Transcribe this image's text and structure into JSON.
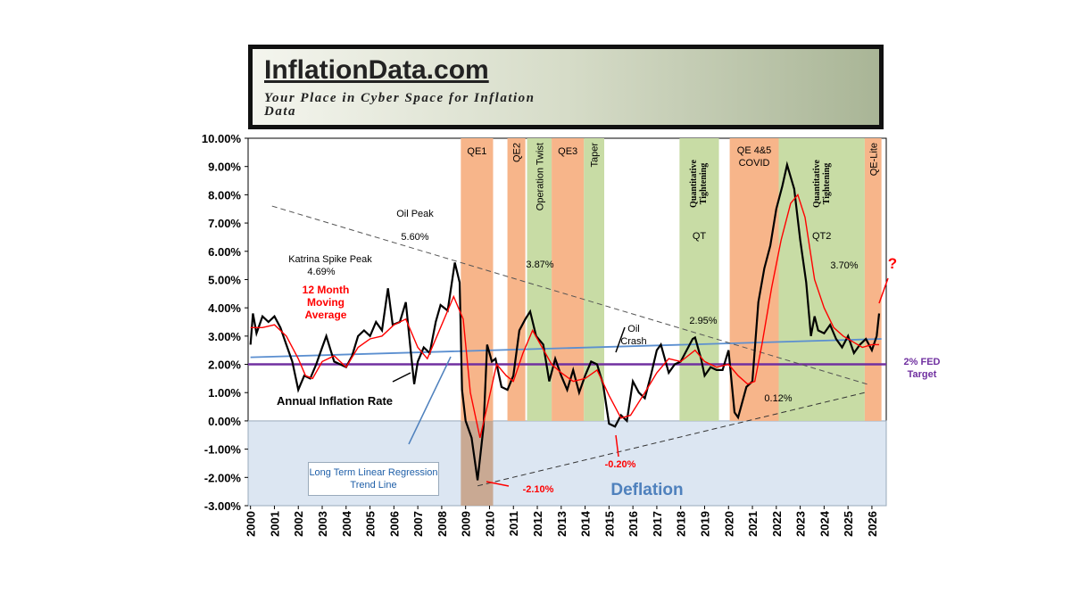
{
  "chart_data": {
    "type": "line",
    "title": "InflationData.com",
    "subtitle": "Your Place in Cyber Space for Inflation Data",
    "xlim": [
      1999.9,
      2026.6
    ],
    "ylim": [
      -3,
      10
    ],
    "xticks": [
      2000,
      2001,
      2002,
      2003,
      2004,
      2005,
      2006,
      2007,
      2008,
      2009,
      2010,
      2011,
      2012,
      2013,
      2014,
      2015,
      2016,
      2017,
      2018,
      2019,
      2020,
      2021,
      2022,
      2023,
      2024,
      2025,
      2026
    ],
    "yticks": [
      {
        "value": -3,
        "label": "-3.00%"
      },
      {
        "value": -2,
        "label": "-2.00%"
      },
      {
        "value": -1,
        "label": "-1.00%"
      },
      {
        "value": 0,
        "label": "0.00%"
      },
      {
        "value": 1,
        "label": "1.00%"
      },
      {
        "value": 2,
        "label": "2.00%"
      },
      {
        "value": 3,
        "label": "3.00%"
      },
      {
        "value": 4,
        "label": "4.00%"
      },
      {
        "value": 5,
        "label": "5.00%"
      },
      {
        "value": 6,
        "label": "6.00%"
      },
      {
        "value": 7,
        "label": "7.00%"
      },
      {
        "value": 8,
        "label": "8.00%"
      },
      {
        "value": 9,
        "label": "9.00%"
      },
      {
        "value": 10,
        "label": "10.00%"
      }
    ],
    "series": [
      {
        "name": "Annual Inflation Rate",
        "color": "#000000",
        "x": [
          2000.0,
          2000.1,
          2000.25,
          2000.5,
          2000.75,
          2001.0,
          2001.25,
          2001.5,
          2001.75,
          2002.0,
          2002.25,
          2002.5,
          2002.75,
          2003.0,
          2003.17,
          2003.5,
          2003.75,
          2004.0,
          2004.25,
          2004.5,
          2004.75,
          2005.0,
          2005.25,
          2005.5,
          2005.75,
          2005.95,
          2006.25,
          2006.5,
          2006.75,
          2006.85,
          2007.0,
          2007.25,
          2007.5,
          2007.75,
          2007.95,
          2008.25,
          2008.55,
          2008.75,
          2008.85,
          2009.0,
          2009.25,
          2009.5,
          2009.75,
          2009.9,
          2010.1,
          2010.25,
          2010.5,
          2010.75,
          2011.0,
          2011.25,
          2011.5,
          2011.7,
          2011.95,
          2012.25,
          2012.5,
          2012.75,
          2013.0,
          2013.25,
          2013.5,
          2013.75,
          2014.0,
          2014.25,
          2014.5,
          2014.75,
          2015.0,
          2015.25,
          2015.5,
          2015.75,
          2016.0,
          2016.25,
          2016.5,
          2016.75,
          2017.0,
          2017.17,
          2017.5,
          2017.75,
          2018.0,
          2018.5,
          2018.6,
          2018.85,
          2019.0,
          2019.25,
          2019.5,
          2019.75,
          2020.0,
          2020.25,
          2020.4,
          2020.75,
          2021.0,
          2021.25,
          2021.5,
          2021.75,
          2022.0,
          2022.25,
          2022.45,
          2022.75,
          2023.0,
          2023.25,
          2023.45,
          2023.6,
          2023.75,
          2024.0,
          2024.25,
          2024.5,
          2024.75,
          2025.0,
          2025.25,
          2025.5,
          2025.75,
          2026.0,
          2026.2,
          2026.3
        ],
        "values": [
          2.7,
          3.8,
          3.1,
          3.7,
          3.5,
          3.7,
          3.3,
          2.7,
          2.1,
          1.1,
          1.6,
          1.5,
          2.0,
          2.6,
          3.0,
          2.1,
          2.0,
          1.9,
          2.3,
          3.0,
          3.2,
          3.0,
          3.5,
          3.2,
          4.69,
          3.4,
          3.5,
          4.2,
          2.1,
          1.3,
          2.1,
          2.6,
          2.4,
          3.5,
          4.1,
          3.9,
          5.6,
          4.9,
          1.1,
          0.0,
          -0.6,
          -2.1,
          -0.2,
          2.7,
          2.1,
          2.2,
          1.2,
          1.1,
          1.6,
          3.2,
          3.6,
          3.87,
          3.0,
          2.7,
          1.4,
          2.2,
          1.6,
          1.1,
          1.8,
          1.0,
          1.6,
          2.1,
          2.0,
          1.3,
          -0.1,
          -0.2,
          0.2,
          0.0,
          1.4,
          1.0,
          0.8,
          1.6,
          2.5,
          2.7,
          1.7,
          2.0,
          2.1,
          2.9,
          2.95,
          2.2,
          1.6,
          1.9,
          1.8,
          1.8,
          2.5,
          0.3,
          0.12,
          1.2,
          1.4,
          4.2,
          5.4,
          6.2,
          7.5,
          8.3,
          9.06,
          8.2,
          6.4,
          4.9,
          3.0,
          3.7,
          3.2,
          3.1,
          3.4,
          2.9,
          2.6,
          3.0,
          2.4,
          2.7,
          2.9,
          2.5,
          3.0,
          3.8
        ]
      },
      {
        "name": "12 Month Moving Average",
        "color": "#ff0000",
        "x": [
          2000.0,
          2000.5,
          2001.0,
          2001.5,
          2002.0,
          2002.3,
          2002.6,
          2003.0,
          2003.5,
          2004.0,
          2004.5,
          2005.0,
          2005.5,
          2006.0,
          2006.5,
          2007.0,
          2007.4,
          2007.8,
          2008.2,
          2008.5,
          2008.9,
          2009.2,
          2009.6,
          2009.9,
          2010.3,
          2010.7,
          2011.0,
          2011.4,
          2011.8,
          2012.2,
          2012.6,
          2013.0,
          2013.5,
          2014.0,
          2014.5,
          2015.0,
          2015.5,
          2015.9,
          2016.5,
          2017.0,
          2017.5,
          2018.0,
          2018.6,
          2019.0,
          2019.5,
          2020.0,
          2020.4,
          2020.8,
          2021.1,
          2021.4,
          2021.8,
          2022.2,
          2022.6,
          2022.9,
          2023.2,
          2023.6,
          2024.0,
          2024.4,
          2024.8,
          2025.2,
          2025.6,
          2026.0,
          2026.3
        ],
        "values": [
          3.3,
          3.3,
          3.4,
          3.0,
          2.2,
          1.6,
          1.5,
          2.1,
          2.3,
          1.9,
          2.6,
          2.9,
          3.0,
          3.4,
          3.6,
          2.6,
          2.2,
          3.0,
          3.8,
          4.4,
          3.6,
          1.0,
          -0.6,
          0.5,
          2.0,
          1.6,
          1.4,
          2.4,
          3.2,
          2.6,
          2.0,
          1.7,
          1.4,
          1.5,
          1.8,
          0.9,
          0.1,
          0.2,
          1.0,
          1.7,
          2.2,
          2.1,
          2.5,
          2.1,
          1.9,
          2.0,
          1.6,
          1.3,
          1.4,
          2.7,
          4.7,
          6.4,
          7.7,
          8.0,
          7.2,
          5.0,
          4.0,
          3.3,
          3.0,
          2.8,
          2.6,
          2.7,
          2.7
        ]
      }
    ],
    "bands": [
      {
        "label": "QE1",
        "start": 2008.8,
        "end": 2010.15,
        "color": "#f7b58a"
      },
      {
        "label": "QE2",
        "start": 2010.75,
        "end": 2011.5,
        "color": "#f7b58a"
      },
      {
        "label": "Operation Twist",
        "start": 2011.57,
        "end": 2012.6,
        "color": "#c8dca5"
      },
      {
        "label": "QE3",
        "start": 2012.6,
        "end": 2013.95,
        "color": "#f7b58a"
      },
      {
        "label": "Taper",
        "start": 2013.95,
        "end": 2014.8,
        "color": "#c8dca5"
      },
      {
        "label": "Quantitative Tightening",
        "sublabel": "QT",
        "start": 2017.95,
        "end": 2019.6,
        "color": "#c8dca5"
      },
      {
        "label": "QE 4&5 COVID",
        "start": 2020.05,
        "end": 2022.1,
        "color": "#f7b58a"
      },
      {
        "label": "Quantitative Tightening",
        "sublabel": "QT2",
        "start": 2022.1,
        "end": 2025.7,
        "color": "#c8dca5"
      },
      {
        "label": "QE-Lite",
        "start": 2025.7,
        "end": 2026.4,
        "color": "#f7b58a"
      }
    ],
    "reference_lines": [
      {
        "name": "2% FED Target",
        "color": "#7030a0",
        "x": [
          1999.9,
          2026.6
        ],
        "values": [
          2,
          2
        ]
      },
      {
        "name": "Long Term Linear Regression Trend Line",
        "color": "#5b8fd0",
        "x": [
          2000,
          2026.4
        ],
        "values": [
          2.25,
          2.9
        ]
      },
      {
        "color": "#555555",
        "dashed": true,
        "x": [
          2000.9,
          2025.8
        ],
        "values": [
          7.6,
          1.3
        ]
      },
      {
        "color": "#333333",
        "dashed": true,
        "x": [
          2009.5,
          2025.7
        ],
        "values": [
          -2.3,
          1.0
        ]
      }
    ],
    "deflation_label": "Deflation",
    "annotations": [
      "Oil Peak",
      "5.60%",
      "Katrina Spike Peak",
      "4.69%",
      "Annual Inflation Rate",
      "-2.10%",
      "-0.20%",
      "3.87%",
      "Oil Crash",
      "2.95%",
      "0.12%",
      "3.70%",
      "?"
    ]
  }
}
